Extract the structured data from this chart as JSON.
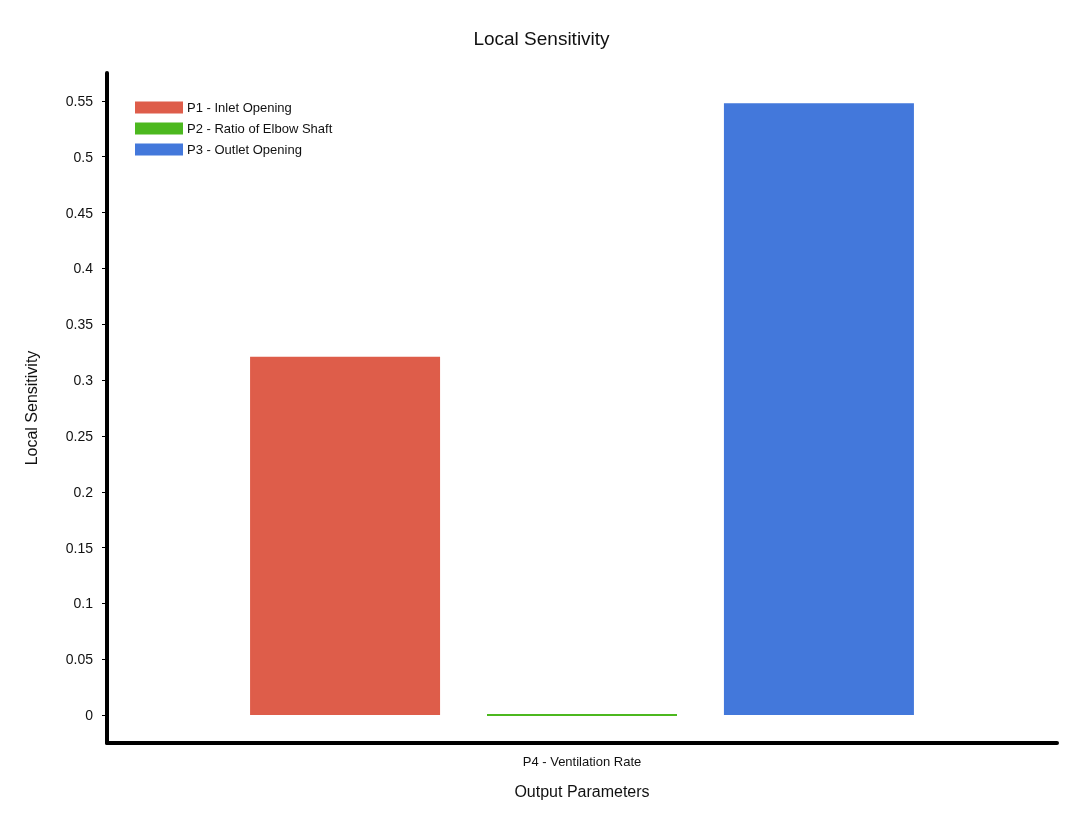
{
  "chart_data": {
    "type": "bar",
    "title": "Local Sensitivity",
    "xlabel": "Output Parameters",
    "ylabel": "Local Sensitivity",
    "categories": [
      "P4 - Ventilation Rate"
    ],
    "series": [
      {
        "name": "P1 - Inlet Opening",
        "color": "#de5d4a",
        "values": [
          0.321
        ]
      },
      {
        "name": "P2 - Ratio of Elbow Shaft",
        "color": "#4cb81f",
        "values": [
          0
        ]
      },
      {
        "name": "P3 - Outlet Opening",
        "color": "#4378db",
        "values": [
          0.548
        ]
      }
    ],
    "ylim": [
      -0.025,
      0.575
    ],
    "yticks": [
      0,
      0.05,
      0.1,
      0.15,
      0.2,
      0.25,
      0.3,
      0.35,
      0.4,
      0.45,
      0.5,
      0.55
    ],
    "grid": false,
    "legend": "top left"
  }
}
